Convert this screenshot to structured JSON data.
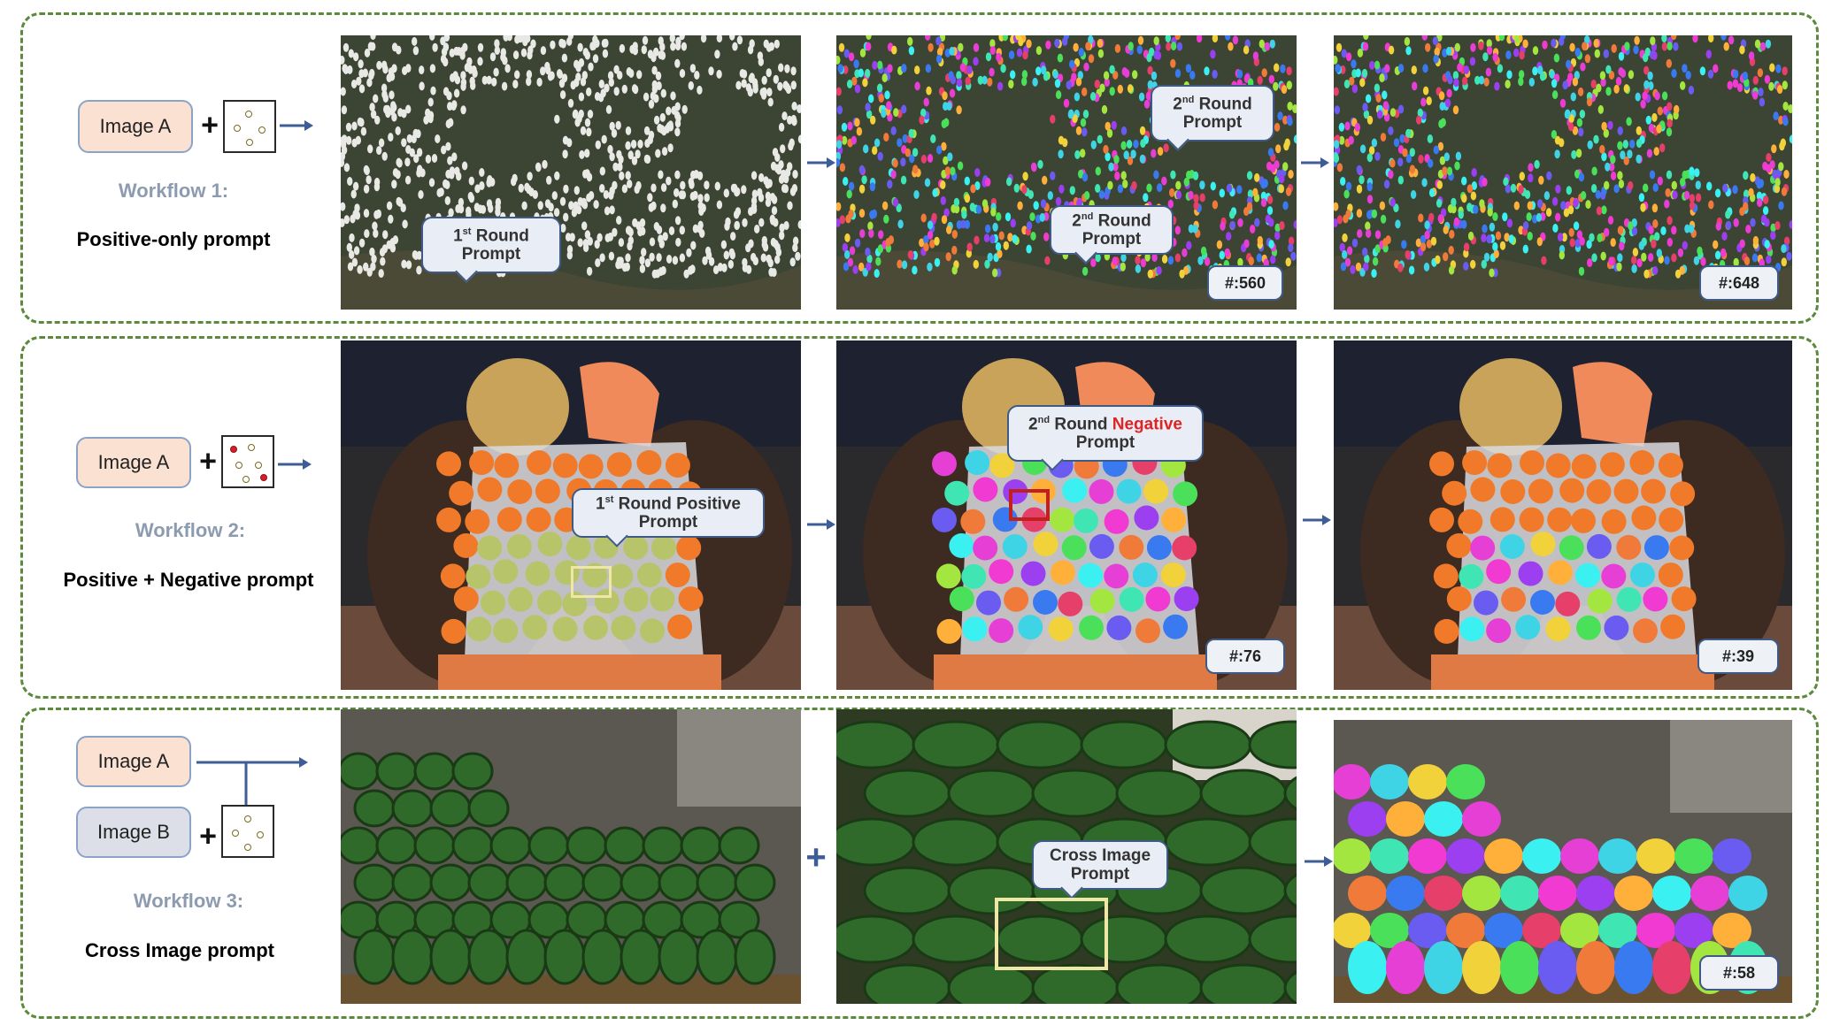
{
  "workflows": [
    {
      "title": "Workflow 1:",
      "subtitle": "Positive-only prompt",
      "image_a": "Image A",
      "callouts": [
        {
          "ord": "1",
          "sup": "st",
          "rest1": " Round",
          "line2": "Prompt"
        },
        {
          "ord": "2",
          "sup": "nd",
          "rest1": " Round",
          "line2": "Prompt"
        },
        {
          "ord": "2",
          "sup": "nd",
          "rest1": " Round",
          "line2": "Prompt"
        }
      ],
      "counts": [
        "#:560",
        "#:648"
      ]
    },
    {
      "title": "Workflow 2:",
      "subtitle": "Positive + Negative  prompt",
      "image_a": "Image A",
      "callouts": [
        {
          "ord": "1",
          "sup": "st",
          "rest1": " Round Positive",
          "line2": "Prompt"
        },
        {
          "ord": "2",
          "sup": "nd",
          "rest1": " Round ",
          "neg": "Negative",
          "line2": "Prompt"
        }
      ],
      "counts": [
        "#:76",
        "#:39"
      ]
    },
    {
      "title": "Workflow 3:",
      "subtitle": "Cross Image prompt",
      "image_a": "Image A",
      "image_b": "Image B",
      "callouts": [
        {
          "line1": "Cross Image",
          "line2": "Prompt"
        }
      ],
      "counts": [
        "#:58"
      ],
      "plus": "+"
    }
  ],
  "colors": {
    "panel_border": "#5a8a3a",
    "workflow_title": "#8d9bb0",
    "arrow": "#3e5c96",
    "negative_text": "#e02424",
    "image_a_fill": "#fbe1d2",
    "image_b_fill": "#dcdfe8"
  },
  "icons": [
    "plus-icon",
    "points-icon",
    "right-arrow-icon"
  ]
}
